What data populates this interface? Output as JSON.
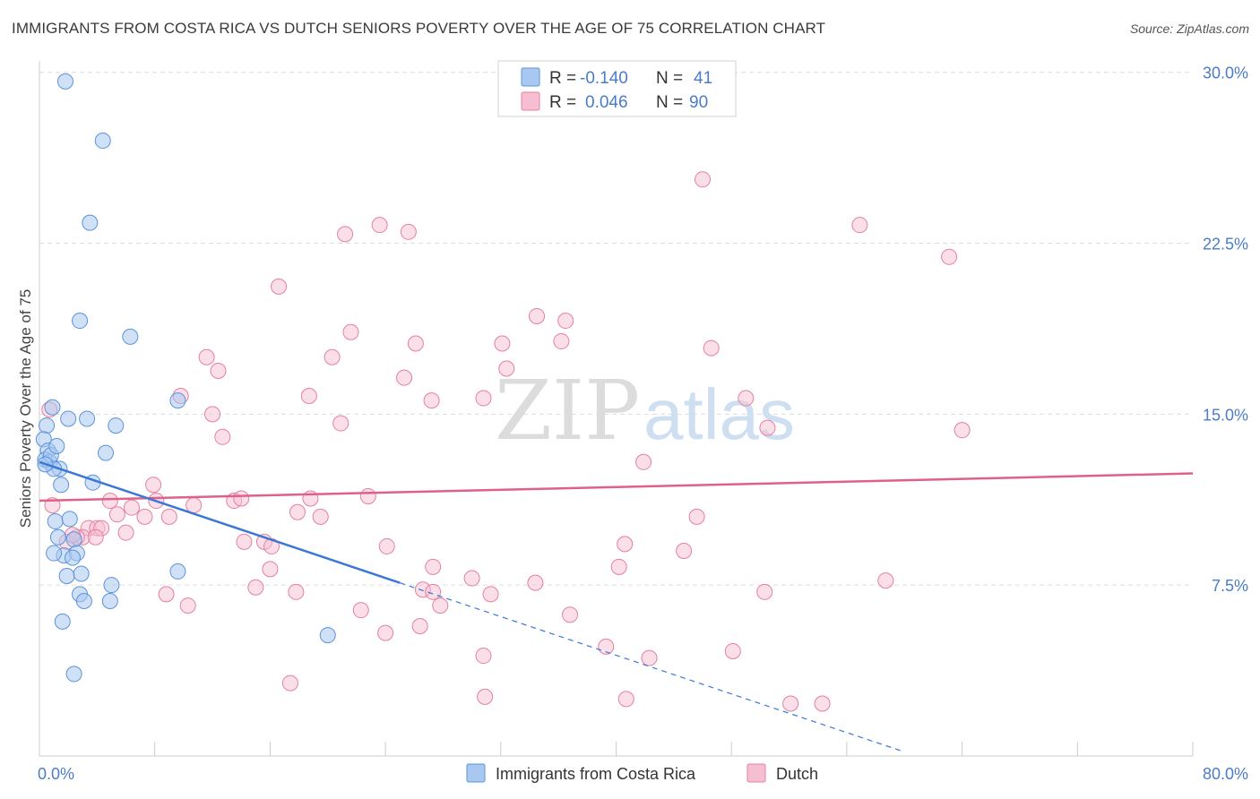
{
  "title": "IMMIGRANTS FROM COSTA RICA VS DUTCH SENIORS POVERTY OVER THE AGE OF 75 CORRELATION CHART",
  "source": "Source: ZipAtlas.com",
  "watermark": {
    "zip": "ZIP",
    "atlas": "atlas"
  },
  "legend": {
    "series1": {
      "r_label": "R =",
      "r_value": "-0.140",
      "n_label": "N =",
      "n_value": "41"
    },
    "series2": {
      "r_label": "R =",
      "r_value": "0.046",
      "n_label": "N =",
      "n_value": "90"
    }
  },
  "colors": {
    "blue_fill": "#a9c8f0",
    "blue_stroke": "#5b93d8",
    "blue_line": "#3a78d4",
    "pink_fill": "#f6bfd1",
    "pink_stroke": "#e4809f",
    "pink_line": "#e0608c",
    "grid": "#dcdcdc",
    "text_blue": "#4a7cc9"
  },
  "chart_data": {
    "type": "scatter",
    "title": "IMMIGRANTS FROM COSTA RICA VS DUTCH SENIORS POVERTY OVER THE AGE OF 75 CORRELATION CHART",
    "xlabel": "",
    "ylabel": "Seniors Poverty Over the Age of 75",
    "xlim": [
      0,
      80
    ],
    "ylim": [
      0,
      30.5
    ],
    "x_tick_labels": [
      "0.0%",
      "80.0%"
    ],
    "y_ticks": [
      7.5,
      15.0,
      22.5,
      30.0
    ],
    "y_tick_labels": [
      "7.5%",
      "15.0%",
      "22.5%",
      "30.0%"
    ],
    "legend_position": "top-center",
    "series": [
      {
        "name": "Immigrants from Costa Rica",
        "R": -0.14,
        "N": 41,
        "trend": {
          "x0": 0.0,
          "y0": 12.9,
          "x_solid_end": 25.0,
          "x_dash_end": 60.0
        },
        "points": [
          [
            1.8,
            29.6
          ],
          [
            4.4,
            27.0
          ],
          [
            3.5,
            23.4
          ],
          [
            2.8,
            19.1
          ],
          [
            6.3,
            18.4
          ],
          [
            0.5,
            14.5
          ],
          [
            0.3,
            13.9
          ],
          [
            0.6,
            13.4
          ],
          [
            0.4,
            13.0
          ],
          [
            0.7,
            12.9
          ],
          [
            0.8,
            13.2
          ],
          [
            1.2,
            13.6
          ],
          [
            1.4,
            12.6
          ],
          [
            1.0,
            12.6
          ],
          [
            1.5,
            11.9
          ],
          [
            2.0,
            14.8
          ],
          [
            3.3,
            14.8
          ],
          [
            5.3,
            14.5
          ],
          [
            4.6,
            13.3
          ],
          [
            3.7,
            12.0
          ],
          [
            0.9,
            15.3
          ],
          [
            9.6,
            15.6
          ],
          [
            1.1,
            10.3
          ],
          [
            2.1,
            10.4
          ],
          [
            1.3,
            9.6
          ],
          [
            2.4,
            9.5
          ],
          [
            1.7,
            8.8
          ],
          [
            2.6,
            8.9
          ],
          [
            2.3,
            8.7
          ],
          [
            1.9,
            7.9
          ],
          [
            2.9,
            8.0
          ],
          [
            9.6,
            8.1
          ],
          [
            5.0,
            7.5
          ],
          [
            2.8,
            7.1
          ],
          [
            3.1,
            6.8
          ],
          [
            4.9,
            6.8
          ],
          [
            1.6,
            5.9
          ],
          [
            2.4,
            3.6
          ],
          [
            20.0,
            5.3
          ],
          [
            1.0,
            8.9
          ],
          [
            0.4,
            12.8
          ]
        ]
      },
      {
        "name": "Dutch",
        "R": 0.046,
        "N": 90,
        "trend": {
          "x0": 0.0,
          "y0": 11.2,
          "x1": 80.0,
          "y1": 12.4
        },
        "points": [
          [
            46.0,
            25.3
          ],
          [
            23.6,
            23.3
          ],
          [
            21.2,
            22.9
          ],
          [
            25.6,
            23.0
          ],
          [
            56.9,
            23.3
          ],
          [
            63.1,
            21.9
          ],
          [
            16.6,
            20.6
          ],
          [
            34.5,
            19.3
          ],
          [
            36.5,
            19.1
          ],
          [
            21.6,
            18.6
          ],
          [
            36.2,
            18.2
          ],
          [
            32.1,
            18.1
          ],
          [
            26.1,
            18.1
          ],
          [
            46.6,
            17.9
          ],
          [
            11.6,
            17.5
          ],
          [
            20.3,
            17.5
          ],
          [
            12.4,
            16.9
          ],
          [
            32.4,
            17.0
          ],
          [
            25.3,
            16.6
          ],
          [
            18.7,
            15.8
          ],
          [
            30.8,
            15.7
          ],
          [
            27.2,
            15.6
          ],
          [
            9.8,
            15.8
          ],
          [
            49.0,
            15.7
          ],
          [
            12.0,
            15.0
          ],
          [
            50.5,
            14.4
          ],
          [
            20.9,
            14.6
          ],
          [
            12.7,
            14.0
          ],
          [
            64.0,
            14.3
          ],
          [
            41.9,
            12.9
          ],
          [
            7.9,
            11.9
          ],
          [
            8.1,
            11.2
          ],
          [
            10.7,
            11.0
          ],
          [
            13.5,
            11.2
          ],
          [
            14.0,
            11.3
          ],
          [
            18.8,
            11.3
          ],
          [
            22.8,
            11.4
          ],
          [
            4.9,
            11.2
          ],
          [
            5.4,
            10.6
          ],
          [
            6.4,
            10.9
          ],
          [
            7.3,
            10.5
          ],
          [
            9.0,
            10.5
          ],
          [
            17.9,
            10.7
          ],
          [
            19.5,
            10.5
          ],
          [
            45.6,
            10.5
          ],
          [
            3.4,
            10.0
          ],
          [
            4.0,
            10.0
          ],
          [
            4.3,
            10.0
          ],
          [
            6.0,
            9.8
          ],
          [
            3.0,
            9.6
          ],
          [
            3.9,
            9.6
          ],
          [
            14.2,
            9.4
          ],
          [
            15.6,
            9.4
          ],
          [
            16.1,
            9.2
          ],
          [
            24.1,
            9.2
          ],
          [
            40.6,
            9.3
          ],
          [
            44.7,
            9.0
          ],
          [
            1.9,
            9.4
          ],
          [
            2.6,
            9.6
          ],
          [
            27.3,
            8.3
          ],
          [
            16.0,
            8.2
          ],
          [
            40.2,
            8.3
          ],
          [
            30.0,
            7.8
          ],
          [
            34.4,
            7.6
          ],
          [
            58.7,
            7.7
          ],
          [
            15.0,
            7.4
          ],
          [
            17.8,
            7.2
          ],
          [
            26.6,
            7.3
          ],
          [
            27.3,
            7.2
          ],
          [
            31.3,
            7.1
          ],
          [
            50.3,
            7.2
          ],
          [
            8.8,
            7.1
          ],
          [
            10.3,
            6.6
          ],
          [
            27.8,
            6.6
          ],
          [
            22.3,
            6.4
          ],
          [
            36.8,
            6.2
          ],
          [
            26.4,
            5.7
          ],
          [
            24.0,
            5.4
          ],
          [
            39.3,
            4.8
          ],
          [
            48.1,
            4.6
          ],
          [
            30.8,
            4.4
          ],
          [
            42.3,
            4.3
          ],
          [
            17.4,
            3.2
          ],
          [
            30.9,
            2.6
          ],
          [
            40.7,
            2.5
          ],
          [
            52.1,
            2.3
          ],
          [
            54.3,
            2.3
          ],
          [
            0.7,
            15.2
          ],
          [
            0.9,
            11.0
          ],
          [
            2.3,
            9.7
          ]
        ]
      }
    ]
  },
  "bottom_legend": {
    "item1": "Immigrants from Costa Rica",
    "item2": "Dutch"
  }
}
